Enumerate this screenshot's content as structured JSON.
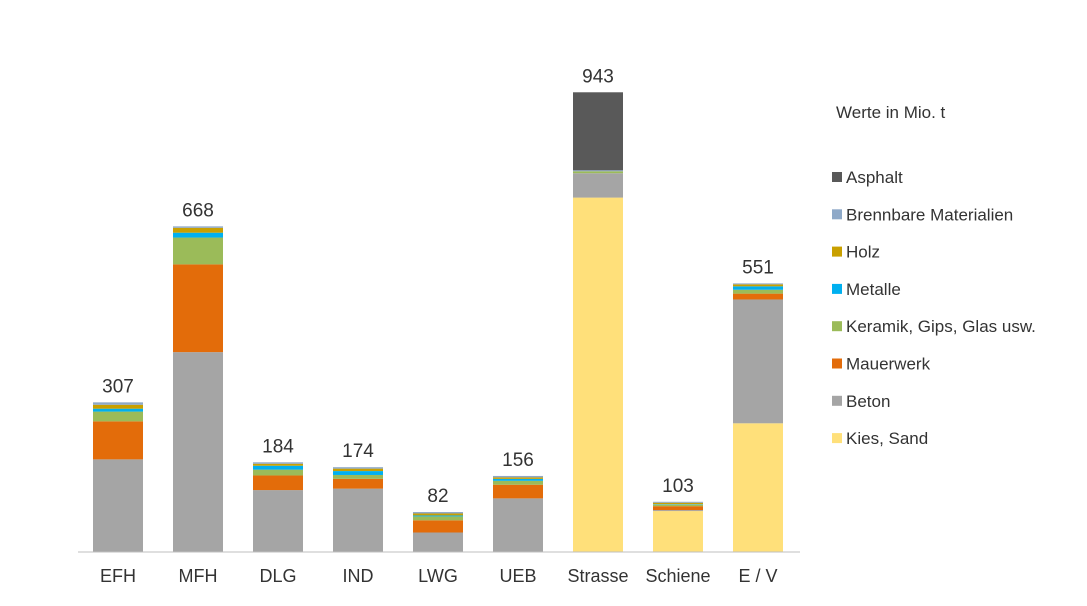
{
  "chart_data": {
    "type": "bar",
    "stacked": true,
    "note": "Werte in Mio. t",
    "categories": [
      "EFH",
      "MFH",
      "DLG",
      "IND",
      "LWG",
      "UEB",
      "Strasse",
      "Schiene",
      "E / V"
    ],
    "totals": [
      307,
      668,
      184,
      174,
      82,
      156,
      943,
      103,
      551
    ],
    "ylim": [
      0,
      1000
    ],
    "grid": false,
    "legend_position": "right",
    "series": [
      {
        "name": "Kies, Sand",
        "color": "#FFE07A",
        "values": [
          0,
          0,
          0,
          0,
          0,
          0,
          727,
          84,
          264
        ]
      },
      {
        "name": "Beton",
        "color": "#A5A5A5",
        "values": [
          190,
          410,
          127,
          130,
          40,
          110,
          50,
          2,
          254
        ]
      },
      {
        "name": "Mauerwerk",
        "color": "#E36C0A",
        "values": [
          78,
          180,
          30,
          20,
          25,
          28,
          0,
          8,
          12
        ]
      },
      {
        "name": "Keramik, Gips, Glas usw.",
        "color": "#9BBB59",
        "values": [
          20,
          55,
          12,
          8,
          8,
          8,
          4,
          3,
          8
        ]
      },
      {
        "name": "Metalle",
        "color": "#00B0F0",
        "values": [
          6,
          10,
          8,
          8,
          2,
          4,
          0,
          1,
          7
        ]
      },
      {
        "name": "Holz",
        "color": "#C9A000",
        "values": [
          8,
          10,
          4,
          5,
          4,
          3,
          0,
          3,
          4
        ]
      },
      {
        "name": "Brennbare Materialien",
        "color": "#8EA9C8",
        "values": [
          5,
          3,
          3,
          3,
          3,
          3,
          2,
          2,
          2
        ]
      },
      {
        "name": "Asphalt",
        "color": "#595959",
        "values": [
          0,
          0,
          0,
          0,
          0,
          0,
          160,
          0,
          0
        ]
      }
    ]
  }
}
